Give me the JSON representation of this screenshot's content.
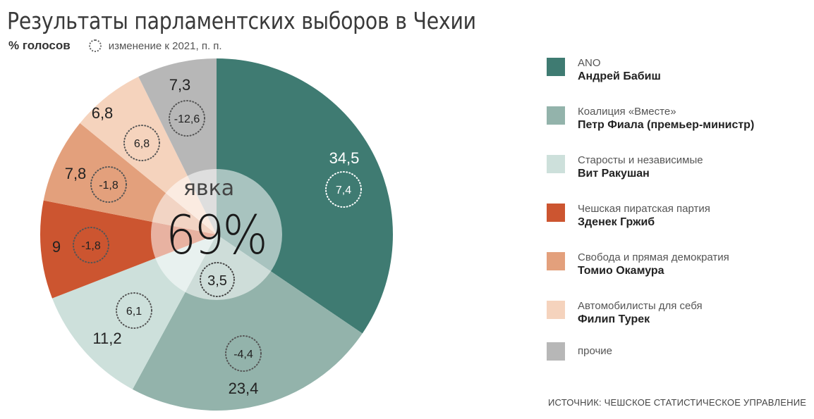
{
  "title": "Результаты парламентских выборов в Чехии",
  "subtitle": {
    "label": "% голосов",
    "change_note": "изменение к 2021, п. п."
  },
  "center": {
    "label": "явка",
    "value": "69%",
    "change": "3,5"
  },
  "legend": [
    {
      "party": "ANO",
      "leader": "Андрей Бабиш",
      "color": "#3f7b72"
    },
    {
      "party": "Коалиция «Вместе»",
      "leader": "Петр Фиала (премьер-министр)",
      "color": "#93b3ab"
    },
    {
      "party": "Старосты и независимые",
      "leader": "Вит Ракушан",
      "color": "#cde0db"
    },
    {
      "party": "Чешская пиратская партия",
      "leader": "Зденек Гржиб",
      "color": "#cc5530"
    },
    {
      "party": "Свобода и прямая демократия",
      "leader": "Томио Окамура",
      "color": "#e3a07c"
    },
    {
      "party": "Автомобилисты для себя",
      "leader": "Филип Турек",
      "color": "#f5d3bd"
    },
    {
      "party": "прочие",
      "leader": "",
      "color": "#b7b7b7"
    }
  ],
  "source": "ИСТОЧНИК: ЧЕШСКОЕ СТАТИСТИЧЕСКОЕ УПРАВЛЕНИЕ",
  "chart_data": {
    "type": "pie",
    "title": "Результаты парламентских выборов в Чехии",
    "subtitle": "% голосов; изменение к 2021, п. п.",
    "categories": [
      "ANO",
      "Коалиция «Вместе»",
      "Старосты и независимые",
      "Чешская пиратская партия",
      "Свобода и прямая демократия",
      "Автомобилисты для себя",
      "прочие"
    ],
    "series": [
      {
        "name": "% голосов",
        "values": [
          34.5,
          23.4,
          11.2,
          9.0,
          7.8,
          6.8,
          7.3
        ]
      },
      {
        "name": "изменение к 2021, п. п.",
        "values": [
          7.4,
          -4.4,
          6.1,
          -1.8,
          -1.8,
          6.8,
          -12.6
        ]
      }
    ],
    "value_labels": [
      "34,5",
      "23,4",
      "11,2",
      "9",
      "7,8",
      "6,8",
      "7,3"
    ],
    "change_labels": [
      "7,4",
      "-4,4",
      "6,1",
      "-1,8",
      "-1,8",
      "6,8",
      "-12,6"
    ],
    "colors": [
      "#3f7b72",
      "#93b3ab",
      "#cde0db",
      "#cc5530",
      "#e3a07c",
      "#f5d3bd",
      "#b7b7b7"
    ],
    "label_text_colors": [
      "#ffffff",
      "#222222",
      "#222222",
      "#222222",
      "#222222",
      "#222222",
      "#222222"
    ],
    "turnout": {
      "label": "явка",
      "value": 69,
      "change": 3.5
    },
    "legend_position": "right",
    "start_angle_deg": 0,
    "direction": "clockwise"
  }
}
